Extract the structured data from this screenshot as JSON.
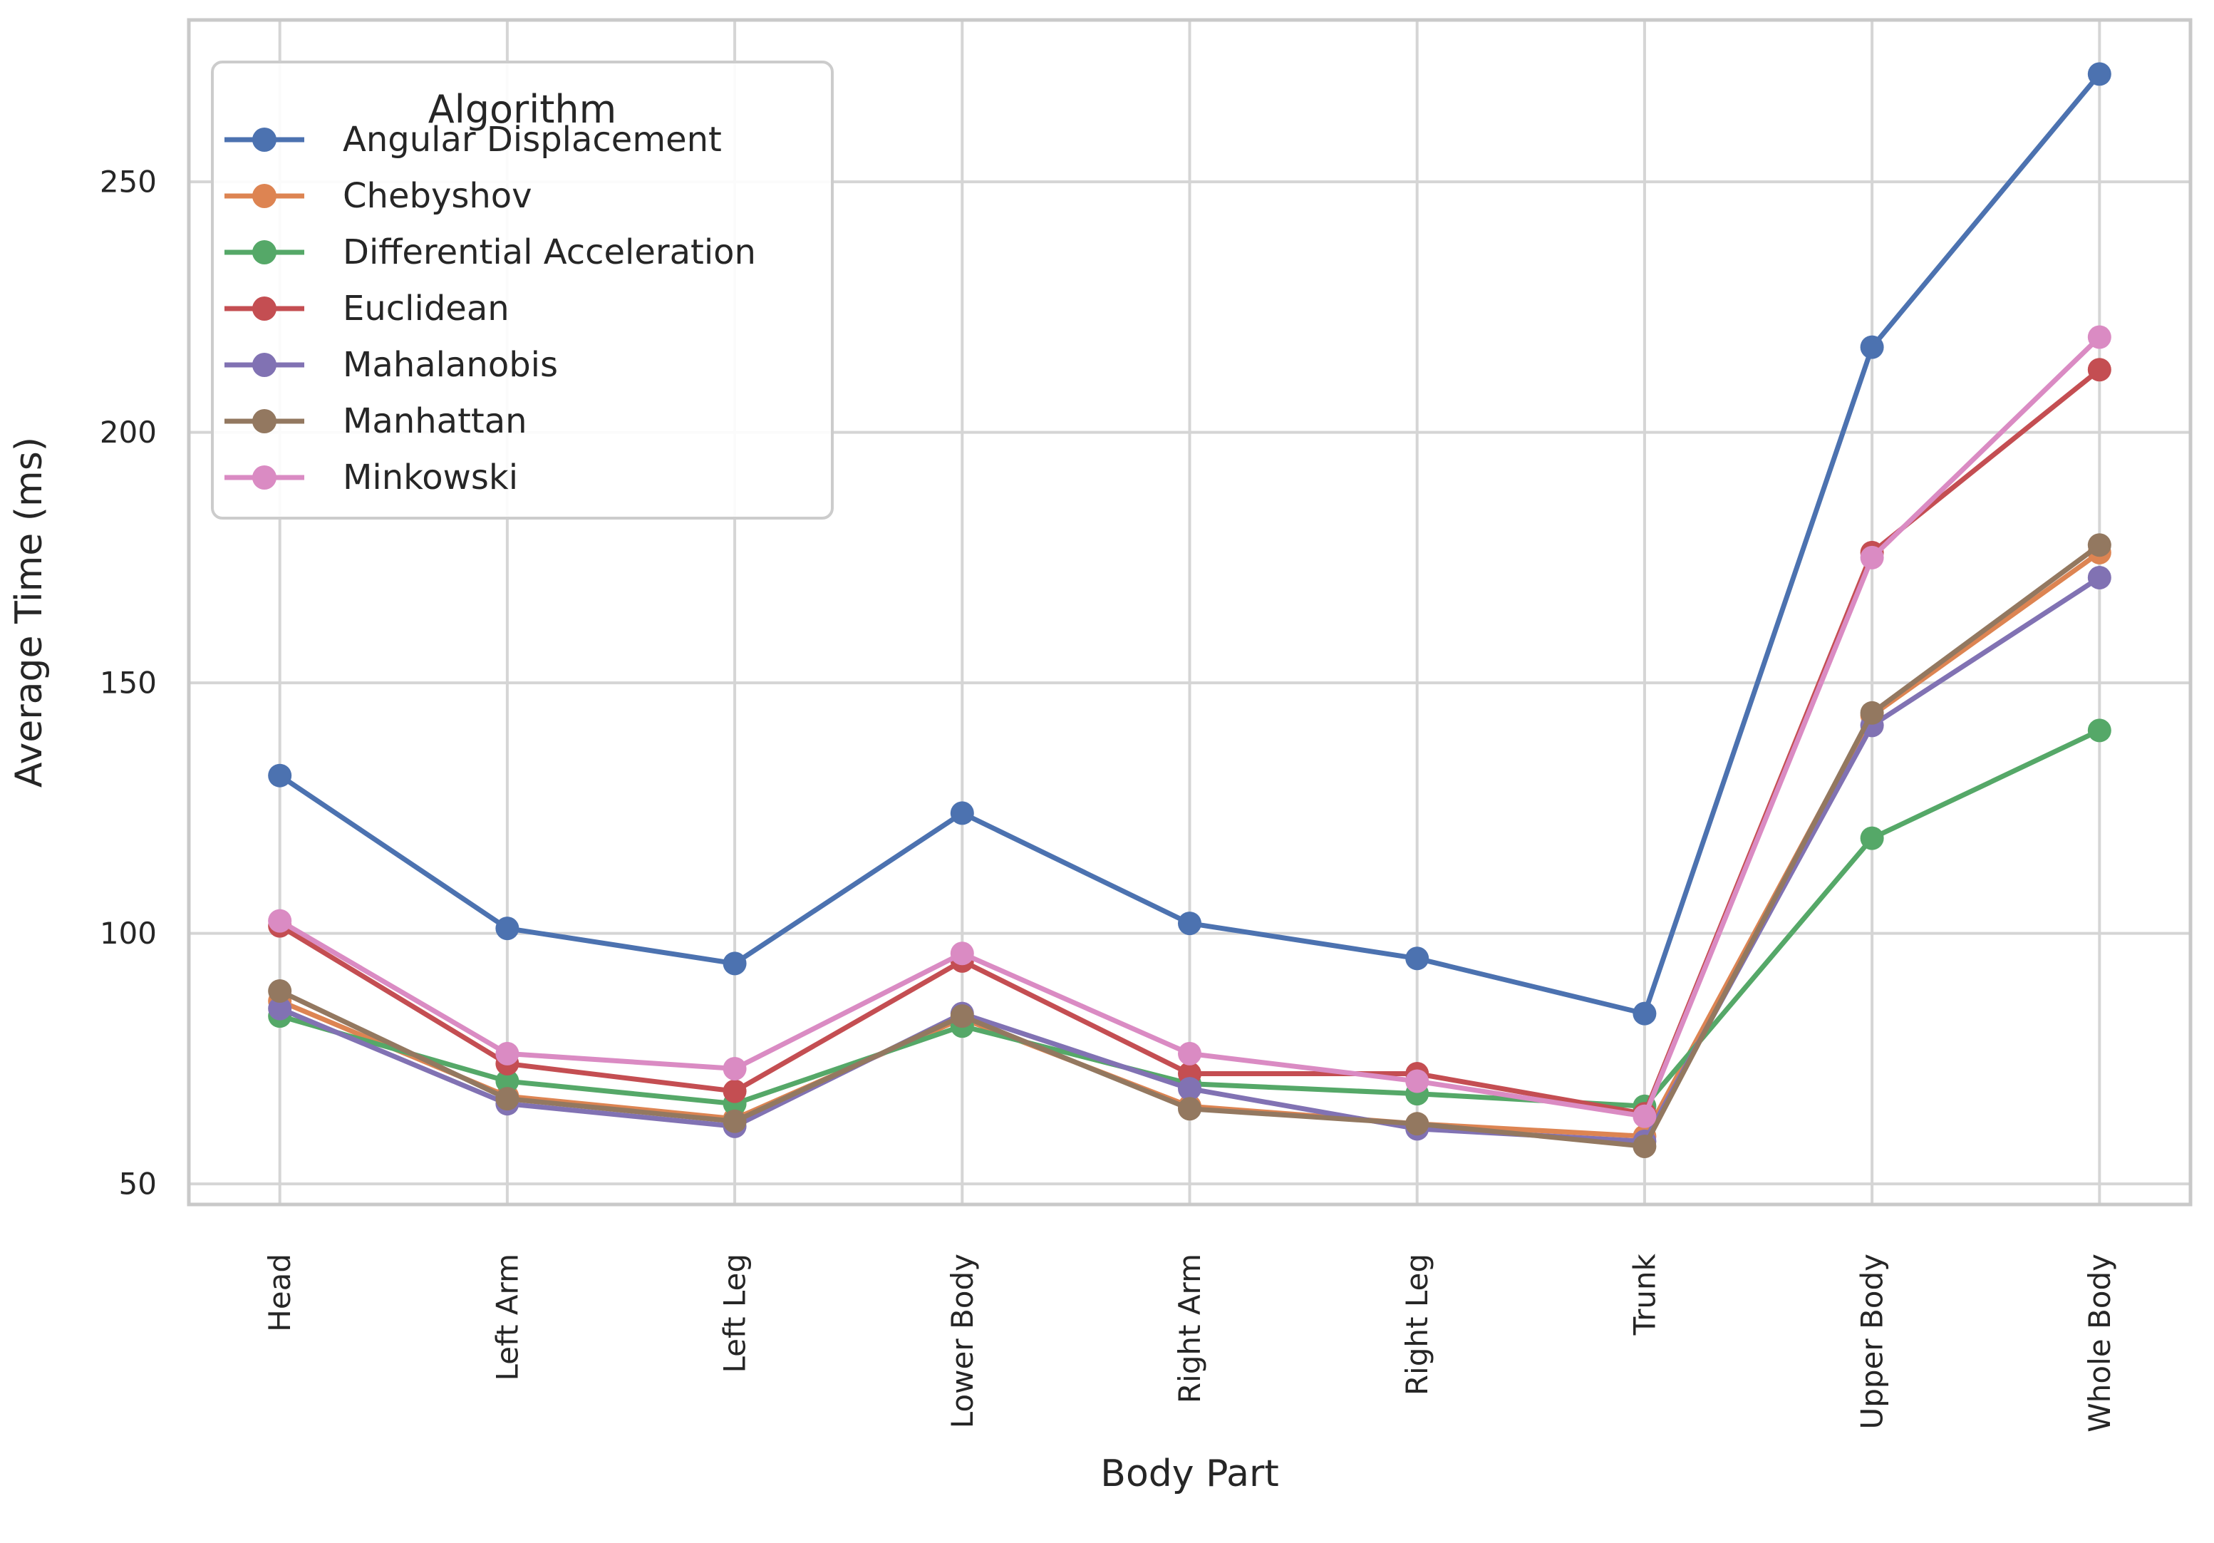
{
  "chart_data": {
    "type": "line",
    "title": "",
    "xlabel": "Body Part",
    "ylabel": "Average Time (ms)",
    "legend_title": "Algorithm",
    "legend_position": "upper left",
    "grid": true,
    "background_color": "#ffffff",
    "grid_color": "#d5d5d5",
    "spine_color": "#c9c9c9",
    "text_color": "#262626",
    "ylim": [
      45.9,
      282.3
    ],
    "yticks": [
      50,
      100,
      150,
      200,
      250
    ],
    "categories": [
      "Head",
      "Left Arm",
      "Left Leg",
      "Lower Body",
      "Right Arm",
      "Right Leg",
      "Trunk",
      "Upper Body",
      "Whole Body"
    ],
    "series": [
      {
        "name": "Angular Displacement",
        "color": "#4C72B0",
        "values": [
          131.5,
          101,
          94,
          124,
          102,
          95,
          84,
          217,
          271.5
        ]
      },
      {
        "name": "Chebyshov",
        "color": "#DD8452",
        "values": [
          86.5,
          67.5,
          63,
          83,
          65.5,
          62,
          59.5,
          143.5,
          176
        ]
      },
      {
        "name": "Differential Acceleration",
        "color": "#55A868",
        "values": [
          83.5,
          70.5,
          66,
          81.5,
          70,
          68,
          65.5,
          119,
          140.5
        ]
      },
      {
        "name": "Euclidean",
        "color": "#C44E52",
        "values": [
          101.5,
          74,
          68.5,
          94.5,
          72,
          72,
          64,
          176,
          212.5
        ]
      },
      {
        "name": "Mahalanobis",
        "color": "#8172B3",
        "values": [
          85,
          66,
          61.5,
          84,
          69,
          61,
          58.5,
          141.5,
          171
        ]
      },
      {
        "name": "Manhattan",
        "color": "#937860",
        "values": [
          88.5,
          67,
          62.5,
          83.5,
          65,
          62,
          57.5,
          144,
          177.5
        ]
      },
      {
        "name": "Minkowski",
        "color": "#DA8BC3",
        "values": [
          102.5,
          76,
          73,
          96,
          76,
          70.5,
          63.5,
          175,
          219
        ]
      }
    ]
  }
}
